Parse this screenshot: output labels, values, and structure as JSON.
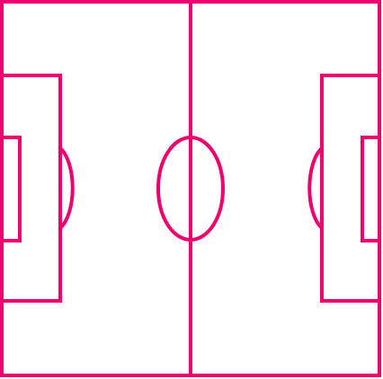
{
  "diagram": {
    "kind": "soccer-pitch-outline",
    "background_color": "#ffffff",
    "line_color": "#f0006e",
    "elements": [
      "pitch-boundary",
      "halfway-line",
      "center-circle",
      "left-penalty-area",
      "left-goal-area",
      "left-penalty-arc",
      "right-penalty-area",
      "right-goal-area",
      "right-penalty-arc"
    ]
  }
}
